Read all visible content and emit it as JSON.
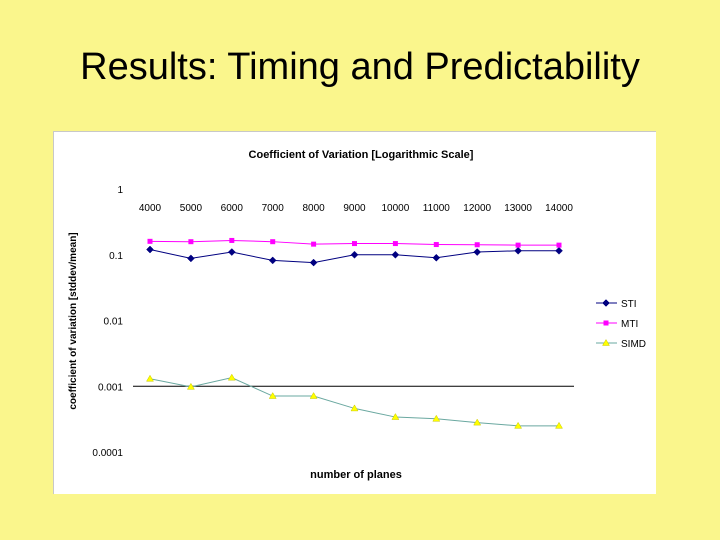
{
  "slide": {
    "title": "Results: Timing and Predictability"
  },
  "chart_data": {
    "type": "line",
    "title": "Coefficient of Variation [Logarithmic Scale]",
    "xlabel": "number of planes",
    "ylabel": "coefficient of variation [stddev/mean]",
    "yscale": "log",
    "ylim": [
      0.0001,
      1
    ],
    "yticks": [
      "1",
      "0.1",
      "0.01",
      "0.001",
      "0.0001"
    ],
    "yticks_values": [
      1,
      0.1,
      0.01,
      0.001,
      0.0001
    ],
    "x_tick_position": "top",
    "grid": "horizontal line at 0.001",
    "legend_position": "right",
    "categories": [
      "4000",
      "5000",
      "6000",
      "7000",
      "8000",
      "9000",
      "10000",
      "11000",
      "12000",
      "13000",
      "14000"
    ],
    "series": [
      {
        "name": "STI",
        "color": "#000080",
        "marker": "diamond",
        "values": [
          0.12,
          0.088,
          0.11,
          0.082,
          0.076,
          0.1,
          0.1,
          0.09,
          0.11,
          0.115,
          0.115
        ]
      },
      {
        "name": "MTI",
        "color": "#ff00ff",
        "marker": "square",
        "values": [
          0.16,
          0.158,
          0.165,
          0.158,
          0.145,
          0.148,
          0.148,
          0.143,
          0.142,
          0.14,
          0.14
        ]
      },
      {
        "name": "SIMD",
        "color": "#ffff00",
        "line_color": "#6aa8a0",
        "marker": "triangle",
        "values": [
          0.0013,
          0.00098,
          0.00135,
          0.00071,
          0.00071,
          0.00046,
          0.00034,
          0.00032,
          0.00028,
          0.00025,
          0.00025
        ]
      }
    ]
  }
}
